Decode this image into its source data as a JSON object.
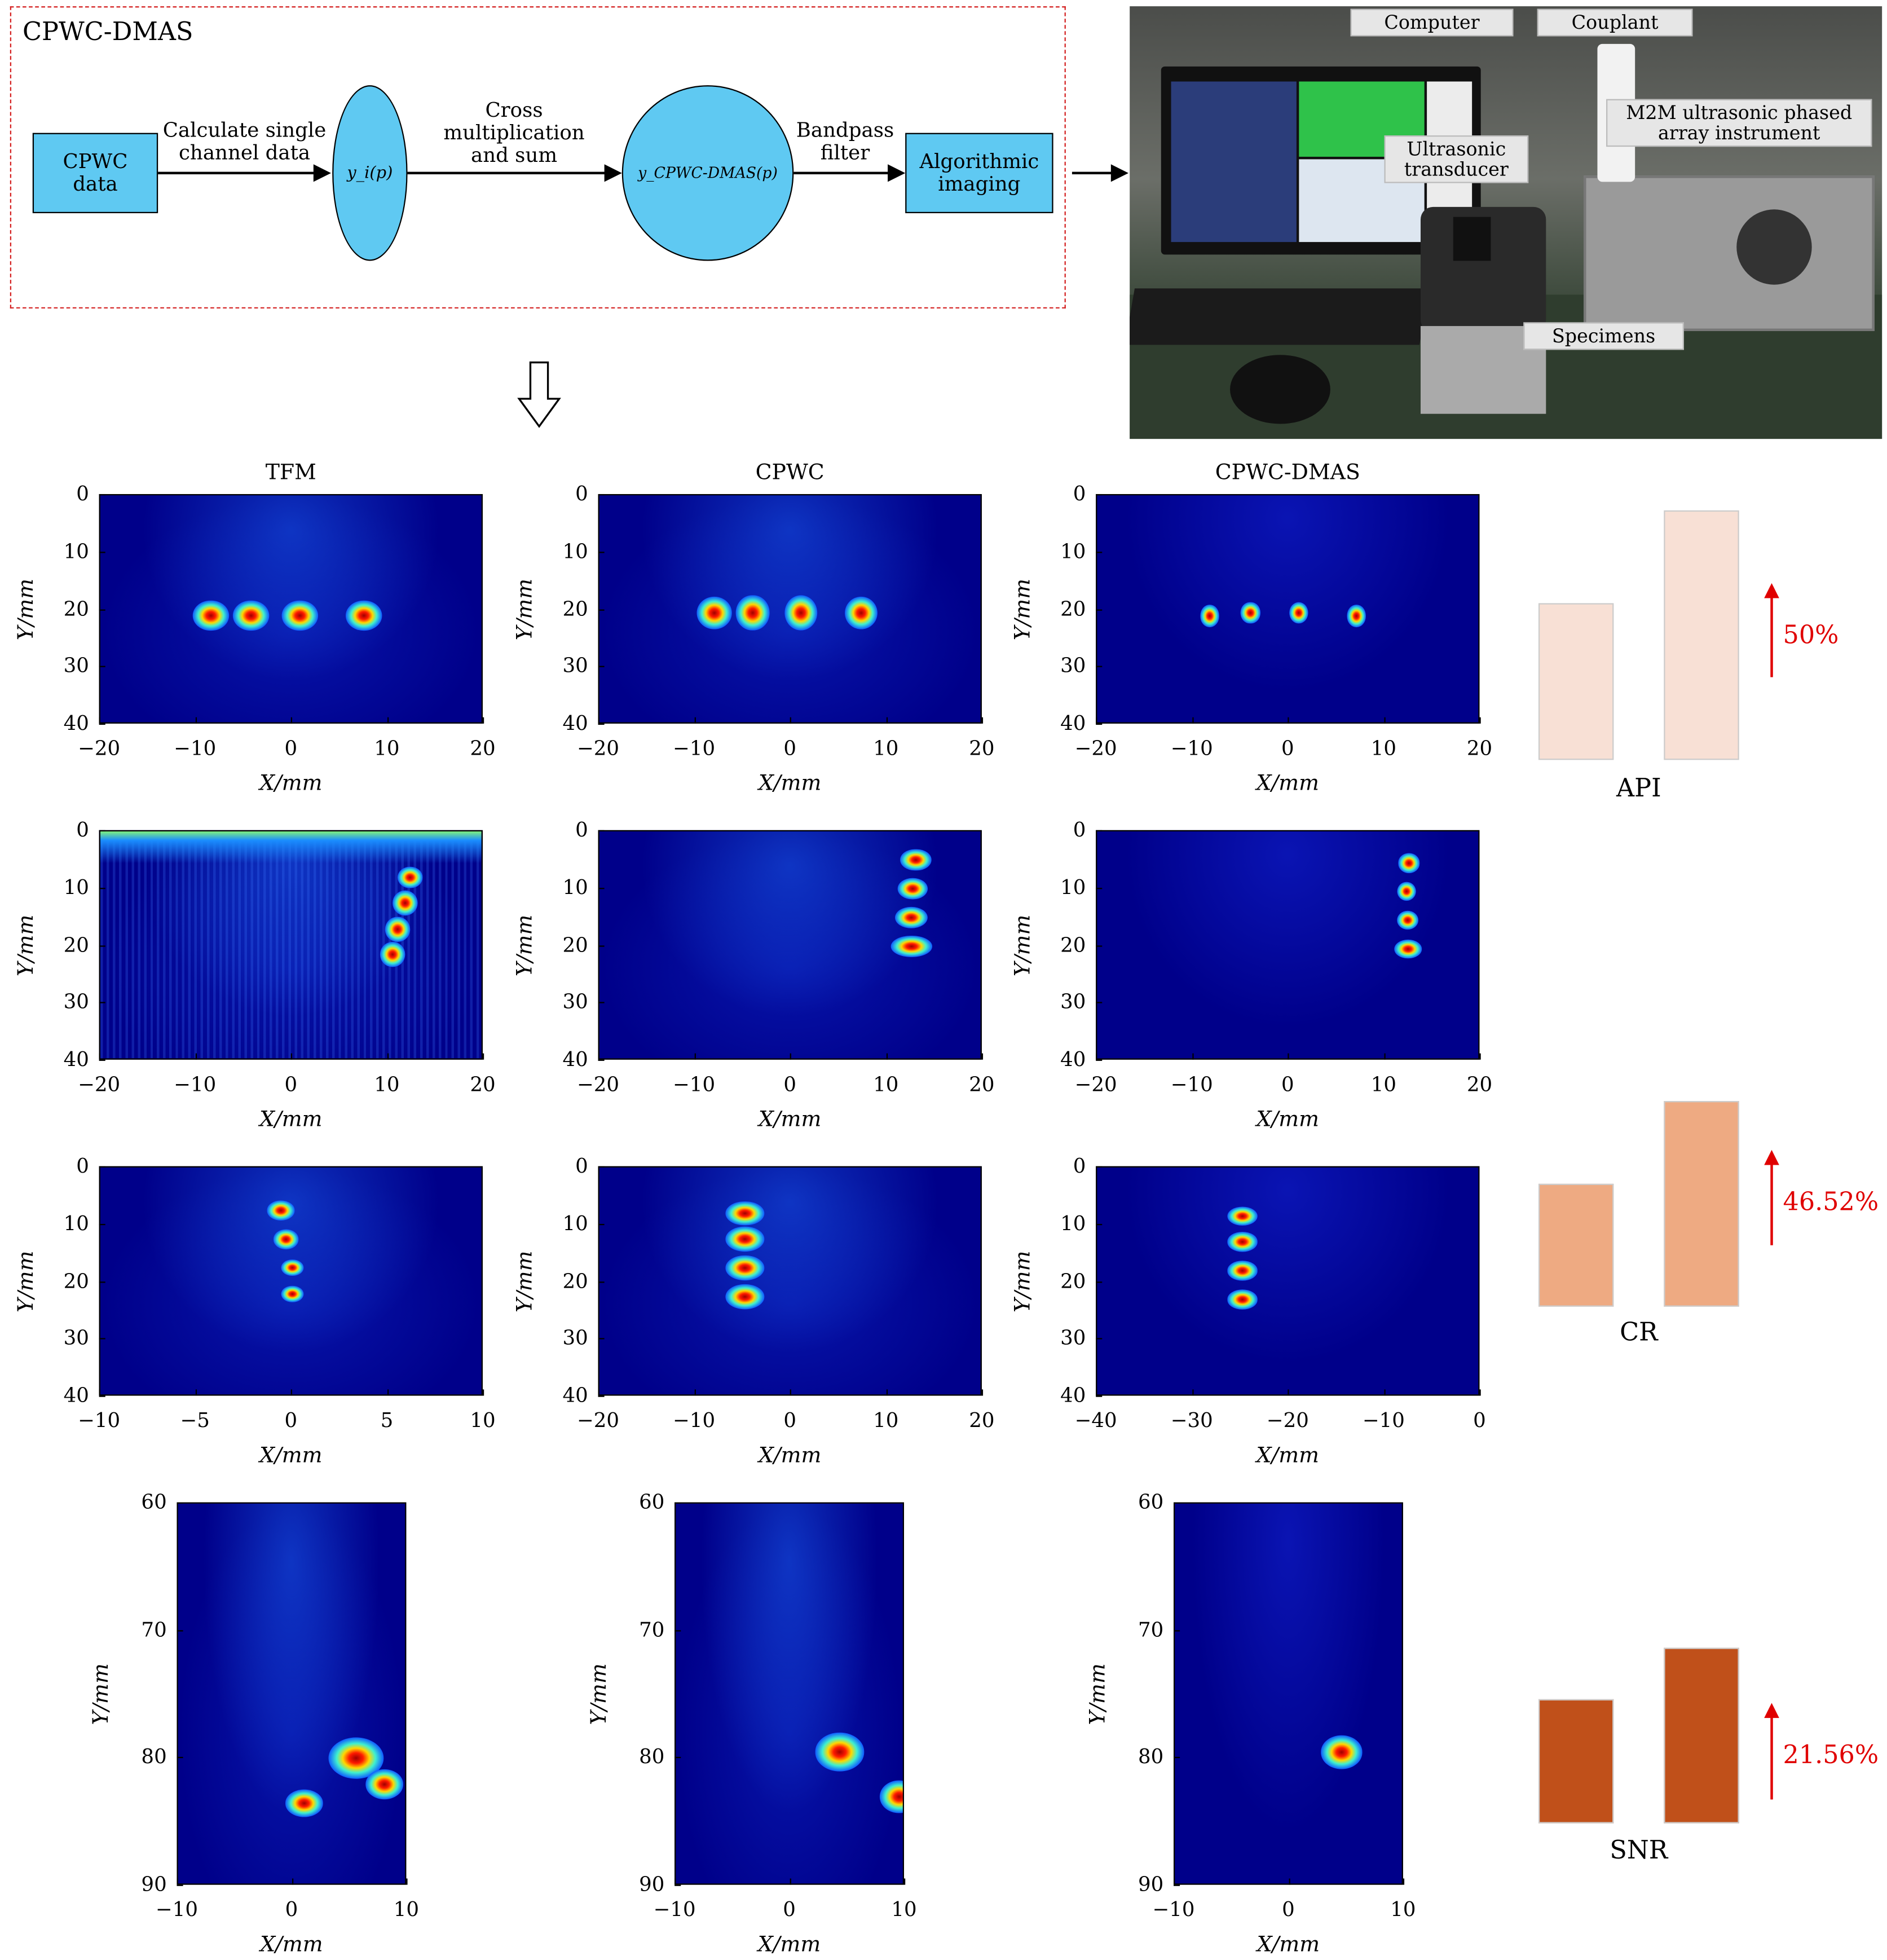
{
  "flow": {
    "title": "CPWC-DMAS",
    "node_input": "CPWC data",
    "edge1": "Calculate single channel data",
    "node_yi": "y_i(p)",
    "edge2": "Cross multiplication and sum",
    "node_ydmas": "y_CPWC-DMAS(p)",
    "edge3": "Bandpass filter",
    "node_output": "Algorithmic imaging",
    "border_color": "#d42020",
    "node_color": "#5fc9f2"
  },
  "photo": {
    "labels": [
      "Computer",
      "Couplant",
      "M2M ultrasonic phased array instrument",
      "Ultrasonic transducer",
      "Specimens"
    ]
  },
  "columns": [
    "TFM",
    "CPWC",
    "CPWC-DMAS"
  ],
  "axes": {
    "xlabel": "X/mm",
    "ylabel": "Y/mm"
  },
  "rows": [
    {
      "x_ticks": [
        [
          "−20",
          "−10",
          "0",
          "10",
          "20"
        ],
        [
          "−20",
          "−10",
          "0",
          "10",
          "20"
        ],
        [
          "−20",
          "−10",
          "0",
          "10",
          "20"
        ]
      ],
      "y_ticks": [
        "0",
        "10",
        "20",
        "30",
        "40"
      ]
    },
    {
      "x_ticks": [
        [
          "−20",
          "−10",
          "0",
          "10",
          "20"
        ],
        [
          "−20",
          "−10",
          "0",
          "10",
          "20"
        ],
        [
          "−20",
          "−10",
          "0",
          "10",
          "20"
        ]
      ],
      "y_ticks": [
        "0",
        "10",
        "20",
        "30",
        "40"
      ]
    },
    {
      "x_ticks": [
        [
          "−10",
          "−5",
          "0",
          "5",
          "10"
        ],
        [
          "−20",
          "−10",
          "0",
          "10",
          "20"
        ],
        [
          "−40",
          "−30",
          "−20",
          "−10",
          "0"
        ]
      ],
      "y_ticks": [
        "0",
        "10",
        "20",
        "30",
        "40"
      ]
    },
    {
      "x_ticks": [
        [
          "−10",
          "0",
          "10"
        ],
        [
          "−10",
          "0",
          "10"
        ],
        [
          "−10",
          "0",
          "10"
        ]
      ],
      "y_ticks": [
        "60",
        "70",
        "80",
        "90"
      ]
    }
  ],
  "metrics": [
    {
      "name": "API",
      "improvement": "50%",
      "relative_values": [
        0.63,
        1.0
      ],
      "color": "#f8e0d5"
    },
    {
      "name": "CR",
      "improvement": "46.52%",
      "relative_values": [
        0.6,
        1.0
      ],
      "color": "#eeaa82"
    },
    {
      "name": "SNR",
      "improvement": "21.56%",
      "relative_values": [
        0.71,
        1.0
      ],
      "color": "#c0501a"
    }
  ]
}
